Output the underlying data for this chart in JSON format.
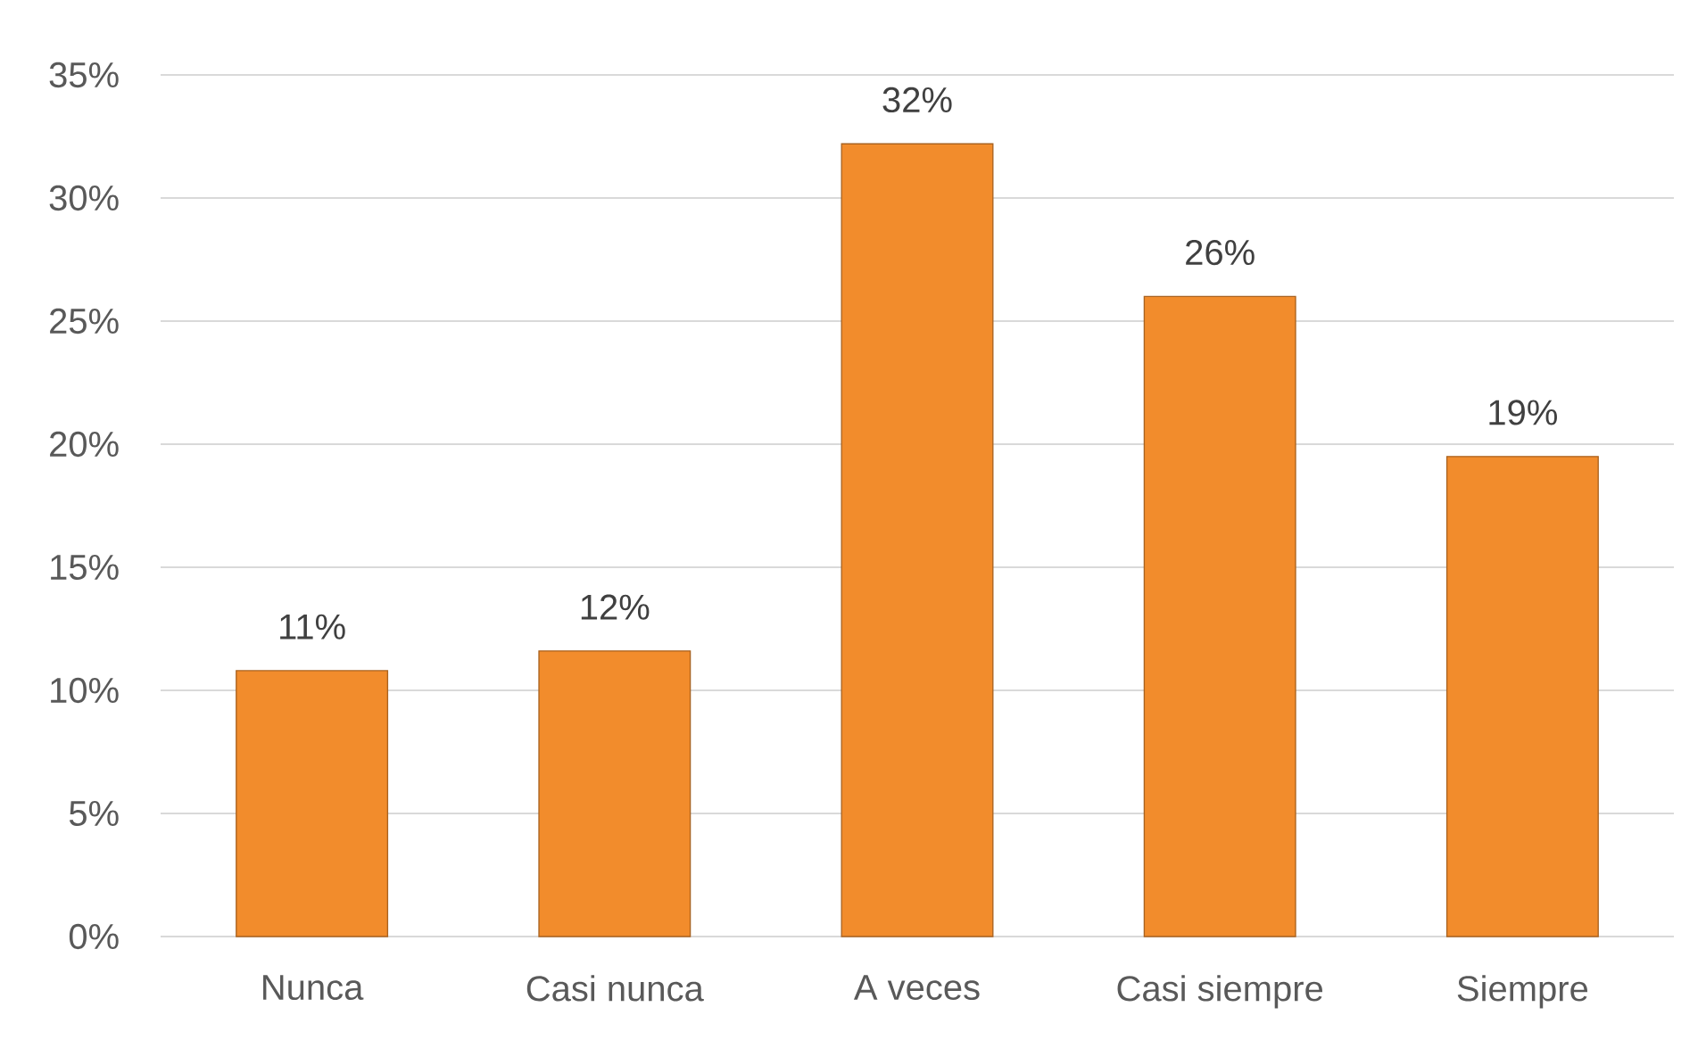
{
  "chart_data": {
    "type": "bar",
    "categories": [
      "Nunca",
      "Casi nunca",
      "A veces",
      "Casi siempre",
      "Siempre"
    ],
    "values": [
      10.8,
      11.6,
      32.2,
      26.0,
      19.5
    ],
    "value_labels": [
      "11%",
      "12%",
      "32%",
      "26%",
      "19%"
    ],
    "color": "#f28c2c",
    "ylim": [
      0,
      35
    ],
    "yticks": [
      {
        "value": 0,
        "label": "0%"
      },
      {
        "value": 5,
        "label": "5%"
      },
      {
        "value": 10,
        "label": "10%"
      },
      {
        "value": 15,
        "label": "15%"
      },
      {
        "value": 20,
        "label": "20%"
      },
      {
        "value": 25,
        "label": "25%"
      },
      {
        "value": 30,
        "label": "30%"
      },
      {
        "value": 35,
        "label": "35%"
      }
    ],
    "grid": "y"
  }
}
